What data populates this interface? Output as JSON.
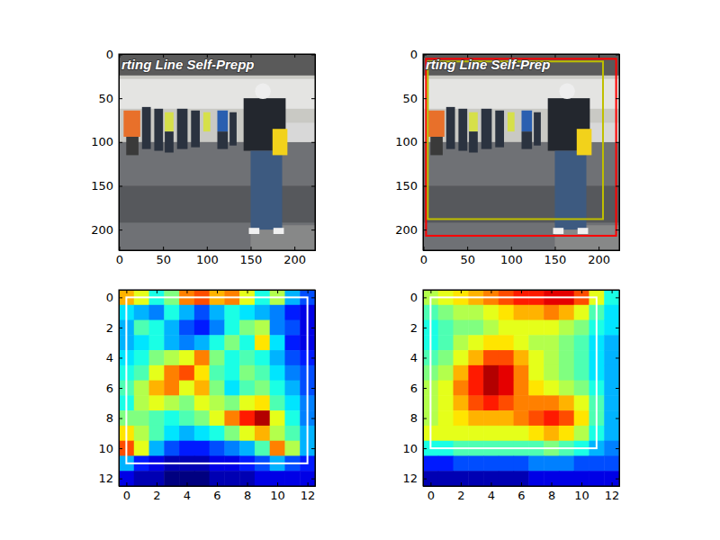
{
  "chart_data": [
    {
      "type": "image",
      "annotations": [
        "rting Line Self-Prepp"
      ],
      "xlim": [
        -0.5,
        223.5
      ],
      "ylim": [
        223.5,
        -0.5
      ],
      "xticks": [
        0,
        50,
        100,
        150,
        200
      ],
      "yticks": [
        0,
        50,
        100,
        150,
        200
      ]
    },
    {
      "type": "image",
      "annotations": [
        "rting Line Self-Prep"
      ],
      "xlim": [
        -0.5,
        223.5
      ],
      "ylim": [
        223.5,
        -0.5
      ],
      "xticks": [
        0,
        50,
        100,
        150,
        200
      ],
      "yticks": [
        0,
        50,
        100,
        150,
        200
      ],
      "boxes": [
        {
          "x0": 3,
          "y0": 5,
          "x1": 220,
          "y1": 207,
          "color": "#ff0000"
        },
        {
          "x0": 5,
          "y0": 8,
          "x1": 205,
          "y1": 188,
          "color": "#bfbf00"
        }
      ]
    },
    {
      "type": "heatmap",
      "color": "jet",
      "color_range": [
        0,
        1
      ],
      "xlim": [
        -0.5,
        12.5
      ],
      "ylim": [
        12.5,
        -0.5
      ],
      "xticks": [
        0,
        2,
        4,
        6,
        8,
        10,
        12
      ],
      "yticks": [
        0,
        2,
        4,
        6,
        8,
        10,
        12
      ],
      "cells": [
        [
          0.7,
          0.6,
          0.4,
          0.5,
          0.75,
          0.8,
          0.7,
          0.75,
          0.6,
          0.4,
          0.55,
          0.3,
          0.2
        ],
        [
          0.35,
          0.3,
          0.25,
          0.4,
          0.3,
          0.2,
          0.3,
          0.4,
          0.35,
          0.3,
          0.25,
          0.15,
          0.1
        ],
        [
          0.3,
          0.45,
          0.4,
          0.3,
          0.2,
          0.15,
          0.25,
          0.4,
          0.5,
          0.55,
          0.25,
          0.2,
          0.1
        ],
        [
          0.3,
          0.35,
          0.4,
          0.3,
          0.25,
          0.3,
          0.4,
          0.5,
          0.4,
          0.65,
          0.35,
          0.15,
          0.1
        ],
        [
          0.35,
          0.4,
          0.5,
          0.55,
          0.6,
          0.75,
          0.5,
          0.4,
          0.45,
          0.4,
          0.3,
          0.2,
          0.15
        ],
        [
          0.4,
          0.45,
          0.6,
          0.75,
          0.8,
          0.65,
          0.45,
          0.4,
          0.5,
          0.45,
          0.35,
          0.25,
          0.2
        ],
        [
          0.45,
          0.55,
          0.7,
          0.75,
          0.6,
          0.7,
          0.5,
          0.35,
          0.45,
          0.5,
          0.4,
          0.3,
          0.2
        ],
        [
          0.4,
          0.55,
          0.6,
          0.55,
          0.5,
          0.6,
          0.55,
          0.5,
          0.6,
          0.65,
          0.45,
          0.35,
          0.25
        ],
        [
          0.5,
          0.5,
          0.45,
          0.4,
          0.45,
          0.5,
          0.6,
          0.75,
          0.85,
          0.95,
          0.6,
          0.4,
          0.25
        ],
        [
          0.65,
          0.55,
          0.45,
          0.35,
          0.3,
          0.35,
          0.4,
          0.5,
          0.6,
          0.7,
          0.55,
          0.45,
          0.3
        ],
        [
          0.8,
          0.6,
          0.3,
          0.2,
          0.15,
          0.15,
          0.2,
          0.25,
          0.3,
          0.45,
          0.75,
          0.55,
          0.3
        ],
        [
          0.3,
          0.15,
          0.1,
          0.05,
          0.05,
          0.05,
          0.1,
          0.1,
          0.15,
          0.2,
          0.3,
          0.2,
          0.15
        ],
        [
          0.1,
          0.05,
          0.05,
          0.0,
          0.0,
          0.0,
          0.05,
          0.05,
          0.05,
          0.1,
          0.1,
          0.1,
          0.1
        ]
      ],
      "boxes": [
        {
          "x0": 0,
          "y0": 0,
          "x1": 12,
          "y1": 11,
          "color": "#ffffff"
        }
      ]
    },
    {
      "type": "heatmap",
      "color": "jet",
      "color_range": [
        0,
        1
      ],
      "xlim": [
        -0.5,
        12.5
      ],
      "ylim": [
        12.5,
        -0.5
      ],
      "xticks": [
        0,
        2,
        4,
        6,
        8,
        10,
        12
      ],
      "yticks": [
        0,
        2,
        4,
        6,
        8,
        10,
        12
      ],
      "cells": [
        [
          0.55,
          0.6,
          0.65,
          0.7,
          0.75,
          0.8,
          0.85,
          0.85,
          0.9,
          0.9,
          0.8,
          0.6,
          0.4
        ],
        [
          0.45,
          0.5,
          0.55,
          0.55,
          0.6,
          0.65,
          0.7,
          0.7,
          0.75,
          0.7,
          0.6,
          0.45,
          0.35
        ],
        [
          0.4,
          0.45,
          0.5,
          0.5,
          0.55,
          0.6,
          0.6,
          0.6,
          0.6,
          0.55,
          0.5,
          0.4,
          0.35
        ],
        [
          0.4,
          0.45,
          0.55,
          0.6,
          0.65,
          0.65,
          0.6,
          0.55,
          0.55,
          0.5,
          0.45,
          0.35,
          0.3
        ],
        [
          0.45,
          0.5,
          0.6,
          0.7,
          0.8,
          0.8,
          0.7,
          0.6,
          0.55,
          0.5,
          0.45,
          0.35,
          0.3
        ],
        [
          0.5,
          0.55,
          0.7,
          0.85,
          0.95,
          0.9,
          0.75,
          0.6,
          0.55,
          0.5,
          0.45,
          0.35,
          0.3
        ],
        [
          0.55,
          0.6,
          0.75,
          0.85,
          0.95,
          0.9,
          0.75,
          0.65,
          0.6,
          0.55,
          0.5,
          0.4,
          0.3
        ],
        [
          0.55,
          0.6,
          0.7,
          0.8,
          0.85,
          0.8,
          0.75,
          0.75,
          0.75,
          0.7,
          0.6,
          0.45,
          0.3
        ],
        [
          0.55,
          0.6,
          0.65,
          0.7,
          0.7,
          0.7,
          0.75,
          0.8,
          0.85,
          0.8,
          0.65,
          0.45,
          0.3
        ],
        [
          0.6,
          0.6,
          0.6,
          0.6,
          0.6,
          0.6,
          0.6,
          0.65,
          0.7,
          0.65,
          0.55,
          0.4,
          0.3
        ],
        [
          0.4,
          0.4,
          0.45,
          0.45,
          0.45,
          0.45,
          0.45,
          0.45,
          0.5,
          0.45,
          0.4,
          0.3,
          0.25
        ],
        [
          0.15,
          0.15,
          0.2,
          0.2,
          0.2,
          0.2,
          0.2,
          0.25,
          0.25,
          0.25,
          0.2,
          0.2,
          0.2
        ],
        [
          0.05,
          0.05,
          0.05,
          0.05,
          0.05,
          0.05,
          0.05,
          0.1,
          0.1,
          0.1,
          0.1,
          0.1,
          0.1
        ]
      ],
      "boxes": [
        {
          "x0": 0,
          "y0": 0,
          "x1": 11,
          "y1": 10,
          "color": "#ffffff"
        }
      ]
    }
  ]
}
